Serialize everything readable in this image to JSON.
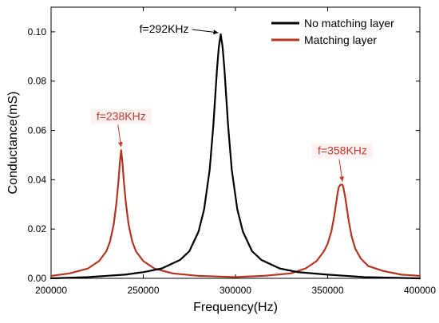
{
  "chart_data": {
    "type": "line",
    "xlabel": "Frequency(Hz)",
    "ylabel": "Conductance(mS)",
    "xlim": [
      200000,
      400000
    ],
    "ylim": [
      0,
      0.11
    ],
    "x_ticks": [
      200000,
      250000,
      300000,
      350000,
      400000
    ],
    "x_tick_labels": [
      "200000",
      "250000",
      "300000",
      "350000",
      "400000"
    ],
    "y_ticks": [
      0,
      0.02,
      0.04,
      0.06,
      0.08,
      0.1
    ],
    "y_tick_labels": [
      "0.00",
      "0.02",
      "0.04",
      "0.06",
      "0.08",
      "0.10"
    ],
    "legend_position": "top-right",
    "series": [
      {
        "name": "No matching layer",
        "color": "#000000",
        "x": [
          200000,
          220000,
          240000,
          250000,
          260000,
          270000,
          275000,
          280000,
          283000,
          286000,
          288000,
          290000,
          291000,
          292000,
          293000,
          294000,
          296000,
          298000,
          301000,
          304000,
          309000,
          314000,
          324000,
          334000,
          350000,
          370000,
          400000
        ],
        "y": [
          0.0,
          0.0005,
          0.0015,
          0.0025,
          0.004,
          0.0075,
          0.011,
          0.019,
          0.028,
          0.044,
          0.062,
          0.085,
          0.094,
          0.099,
          0.094,
          0.085,
          0.062,
          0.044,
          0.028,
          0.019,
          0.011,
          0.0075,
          0.004,
          0.0025,
          0.0015,
          0.0005,
          0.0
        ]
      },
      {
        "name": "Matching layer",
        "color": "#b5341f",
        "x": [
          200000,
          210000,
          220000,
          226000,
          230000,
          232000,
          234000,
          235500,
          236500,
          237300,
          238000,
          238700,
          239500,
          240500,
          242000,
          244000,
          246000,
          250000,
          256000,
          266000,
          280000,
          300000,
          315000,
          330000,
          338000,
          344000,
          348000,
          350000,
          352000,
          353500,
          354500,
          355500,
          356000,
          357000,
          358000,
          358500,
          359500,
          360500,
          361500,
          363000,
          365000,
          368000,
          372000,
          380000,
          390000,
          400000
        ],
        "y": [
          0.001,
          0.002,
          0.004,
          0.007,
          0.011,
          0.015,
          0.022,
          0.031,
          0.039,
          0.047,
          0.052,
          0.047,
          0.039,
          0.031,
          0.022,
          0.015,
          0.011,
          0.007,
          0.004,
          0.002,
          0.001,
          0.0005,
          0.001,
          0.002,
          0.004,
          0.007,
          0.011,
          0.014,
          0.019,
          0.025,
          0.03,
          0.035,
          0.037,
          0.038,
          0.038,
          0.037,
          0.033,
          0.028,
          0.023,
          0.017,
          0.012,
          0.008,
          0.005,
          0.003,
          0.0015,
          0.001
        ]
      }
    ],
    "annotations": [
      {
        "text": "f=292KHz",
        "x": 292000,
        "y": 0.099,
        "color": "#000000",
        "side": "left"
      },
      {
        "text": "f=238KHz",
        "x": 238000,
        "y": 0.052,
        "color": "#c0392b",
        "side": "above"
      },
      {
        "text": "f=358KHz",
        "x": 358000,
        "y": 0.038,
        "color": "#c0392b",
        "side": "above"
      }
    ]
  }
}
